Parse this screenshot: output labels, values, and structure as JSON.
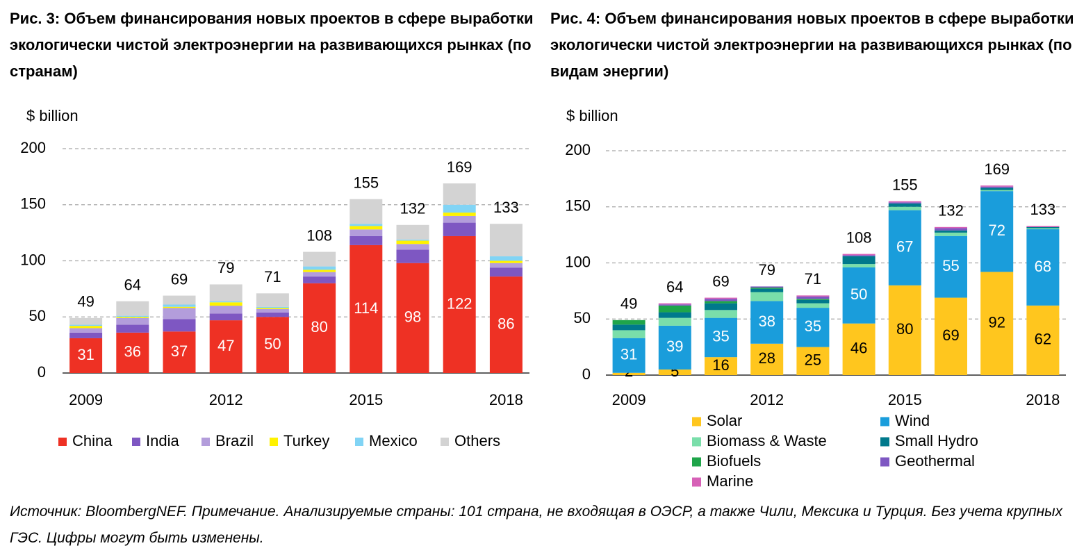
{
  "figures": {
    "left_title": "Рис. 3: Объем финансирования новых проектов в сфере выработки экологически чистой электроэнергии на развивающихся рынках (по странам)",
    "right_title": "Рис. 4: Объем финансирования новых проектов в сфере выработки экологически чистой электроэнергии на развивающихся рынках (по видам энергии)"
  },
  "source_note": "Источник: BloombergNEF. Примечание. Анализируемые страны: 101 страна, не входящая в ОЭСР, а также Чили, Мексика и Турция. Без учета крупных ГЭС. Цифры могут быть изменены.",
  "chart_data": [
    {
      "type": "bar",
      "stacked": true,
      "title": "Рис. 3: Объем финансирования новых проектов в сфере выработки экологически чистой электроэнергии на развивающихся рынках (по странам)",
      "ylabel": "$ billion",
      "ylim": [
        0,
        200
      ],
      "yticks": [
        0,
        50,
        100,
        150,
        200
      ],
      "grid": true,
      "legend_position": "bottom",
      "categories": [
        "2009",
        "2010",
        "2011",
        "2012",
        "2013",
        "2014",
        "2015",
        "2016",
        "2017",
        "2018"
      ],
      "x_tick_labels": [
        "2009",
        "",
        "",
        "2012",
        "",
        "",
        "2015",
        "",
        "",
        "2018"
      ],
      "totals": [
        49,
        64,
        69,
        79,
        71,
        108,
        155,
        132,
        169,
        133
      ],
      "label_series": "China",
      "series": [
        {
          "name": "China",
          "color": "#EE3124",
          "values": [
            31,
            36,
            37,
            47,
            50,
            80,
            114,
            98,
            122,
            86
          ]
        },
        {
          "name": "India",
          "color": "#7E57C2",
          "values": [
            5,
            7,
            11,
            6,
            4,
            6,
            8,
            12,
            12,
            8
          ]
        },
        {
          "name": "Brazil",
          "color": "#B39DDB",
          "values": [
            4,
            6,
            10,
            7,
            3,
            4,
            6,
            5,
            6,
            4
          ]
        },
        {
          "name": "Turkey",
          "color": "#FFF200",
          "values": [
            2,
            1,
            1,
            3,
            1,
            2,
            3,
            3,
            3,
            2
          ]
        },
        {
          "name": "Mexico",
          "color": "#81D4F5",
          "values": [
            1,
            1,
            2,
            1,
            1,
            3,
            2,
            1,
            7,
            4
          ]
        },
        {
          "name": "Others",
          "color": "#D3D3D3",
          "values": [
            6,
            13,
            8,
            15,
            12,
            13,
            22,
            13,
            19,
            29
          ]
        }
      ]
    },
    {
      "type": "bar",
      "stacked": true,
      "title": "Рис. 4: Объем финансирования новых проектов в сфере выработки экологически чистой электроэнергии на развивающихся рынках (по видам энергии)",
      "ylabel": "$ billion",
      "ylim": [
        0,
        200
      ],
      "yticks": [
        0,
        50,
        100,
        150,
        200
      ],
      "grid": true,
      "legend_position": "bottom",
      "categories": [
        "2009",
        "2010",
        "2011",
        "2012",
        "2013",
        "2014",
        "2015",
        "2016",
        "2017",
        "2018"
      ],
      "x_tick_labels": [
        "2009",
        "",
        "",
        "2012",
        "",
        "",
        "2015",
        "",
        "",
        "2018"
      ],
      "totals": [
        49,
        64,
        69,
        79,
        71,
        108,
        155,
        132,
        169,
        133
      ],
      "label_series": [
        "Solar",
        "Wind"
      ],
      "series": [
        {
          "name": "Solar",
          "color": "#FFC61E",
          "values": [
            2,
            5,
            16,
            28,
            25,
            46,
            80,
            69,
            92,
            62
          ]
        },
        {
          "name": "Wind",
          "color": "#1A9DDB",
          "values": [
            31,
            39,
            35,
            38,
            35,
            50,
            67,
            55,
            72,
            68
          ]
        },
        {
          "name": "Biomass & Waste",
          "color": "#7ADEAA",
          "values": [
            7,
            7,
            7,
            8,
            4,
            3,
            3,
            3,
            1,
            1
          ]
        },
        {
          "name": "Small Hydro",
          "color": "#00798C",
          "values": [
            5,
            5,
            6,
            3,
            3,
            7,
            3,
            2,
            2,
            1
          ]
        },
        {
          "name": "Biofuels",
          "color": "#1FA54A",
          "values": [
            4,
            6,
            2,
            1,
            1,
            0,
            0,
            0,
            0,
            0
          ]
        },
        {
          "name": "Geothermal",
          "color": "#7E57C2",
          "values": [
            0,
            1,
            2,
            1,
            2,
            1,
            1,
            2,
            1,
            0
          ]
        },
        {
          "name": "Marine",
          "color": "#D761B7",
          "values": [
            0,
            1,
            1,
            0,
            1,
            1,
            1,
            1,
            1,
            1
          ]
        }
      ]
    }
  ]
}
